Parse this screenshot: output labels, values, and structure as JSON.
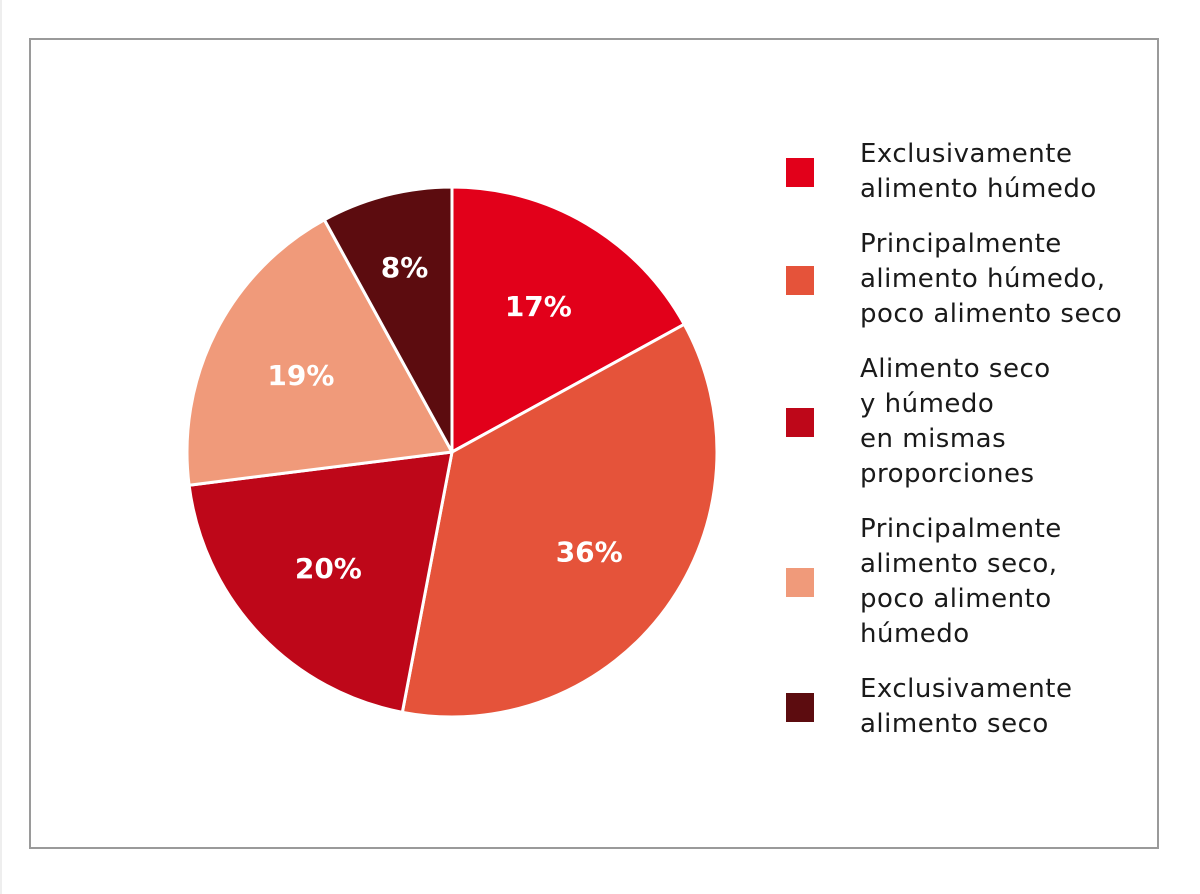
{
  "chart_data": {
    "type": "pie",
    "start_angle": "12 o'clock",
    "direction": "clockwise",
    "legend_position": "right",
    "slices": [
      {
        "label": "Exclusivamente alimento húmedo",
        "label_lines": [
          "Exclusivamente",
          "alimento húmedo"
        ],
        "value": 17,
        "data_label": "17%",
        "color": "#e2001a"
      },
      {
        "label": "Principalmente alimento húmedo, poco alimento seco",
        "label_lines": [
          "Principalmente",
          "alimento húmedo,",
          "poco alimento seco"
        ],
        "value": 36,
        "data_label": "36%",
        "color": "#e5533a"
      },
      {
        "label": "Alimento seco y húmedo en mismas proporciones",
        "label_lines": [
          "Alimento seco",
          "y húmedo",
          "en mismas",
          "proporciones"
        ],
        "value": 20,
        "data_label": "20%",
        "color": "#be0719"
      },
      {
        "label": "Principalmente alimento seco, poco alimento húmedo",
        "label_lines": [
          "Principalmente",
          "alimento seco,",
          "poco alimento",
          "húmedo"
        ],
        "value": 19,
        "data_label": "19%",
        "color": "#f09a7a"
      },
      {
        "label": "Exclusivamente alimento seco",
        "label_lines": [
          "Exclusivamente",
          "alimento seco"
        ],
        "value": 8,
        "data_label": "8%",
        "color": "#5c0c0f"
      }
    ]
  }
}
